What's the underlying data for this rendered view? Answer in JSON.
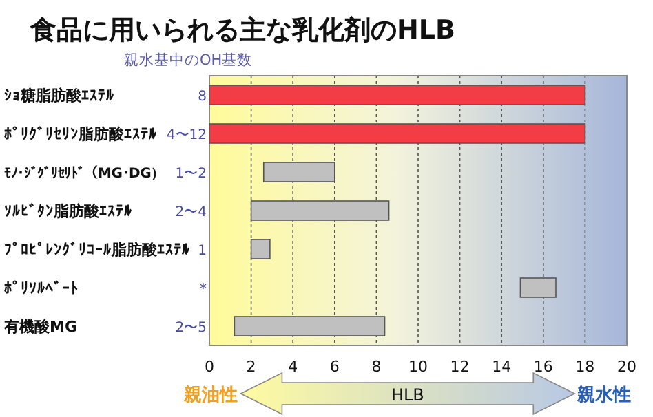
{
  "chart_data": {
    "type": "bar",
    "orientation": "horizontal",
    "title": "食品に用いられる主な乳化剤のHLB",
    "xlabel": "HLB",
    "categories": [
      "ｼｮ糖脂肪酸ｴｽﾃﾙ",
      "ﾎﾟﾘｸﾞﾘｾﾘﾝ脂肪酸ｴｽﾃﾙ",
      "ﾓﾉ･ｼﾞｸﾞﾘｾﾘﾄﾞ（MG･DG）",
      "ｿﾙﾋﾞﾀﾝ脂肪酸ｴｽﾃﾙ",
      "ﾌﾟﾛﾋﾟﾚﾝｸﾞﾘｺｰﾙ脂肪酸ｴｽﾃﾙ",
      "ﾎﾟﾘｿﾙﾍﾞｰﾄ",
      "有機酸MG"
    ],
    "base": [
      0,
      0,
      2.6,
      2,
      2,
      14.9,
      1.2
    ],
    "values": [
      18,
      18,
      3.4,
      6.6,
      0.9,
      1.7,
      7.2
    ],
    "colors": [
      "#f23c46",
      "#f23c46",
      "#c0c0c0",
      "#c0c0c0",
      "#c0c0c0",
      "#c0c0c0",
      "#c0c0c0"
    ],
    "xlim": [
      0,
      20
    ],
    "xticks": [
      0,
      2,
      4,
      6,
      8,
      10,
      12,
      14,
      16,
      18,
      20
    ],
    "grid": "x",
    "annotations": [
      "親水基中のOH基数",
      "8",
      "4〜12",
      "1〜2",
      "2〜4",
      "1",
      "*",
      "2〜5",
      "親油性",
      "親水性"
    ]
  }
}
